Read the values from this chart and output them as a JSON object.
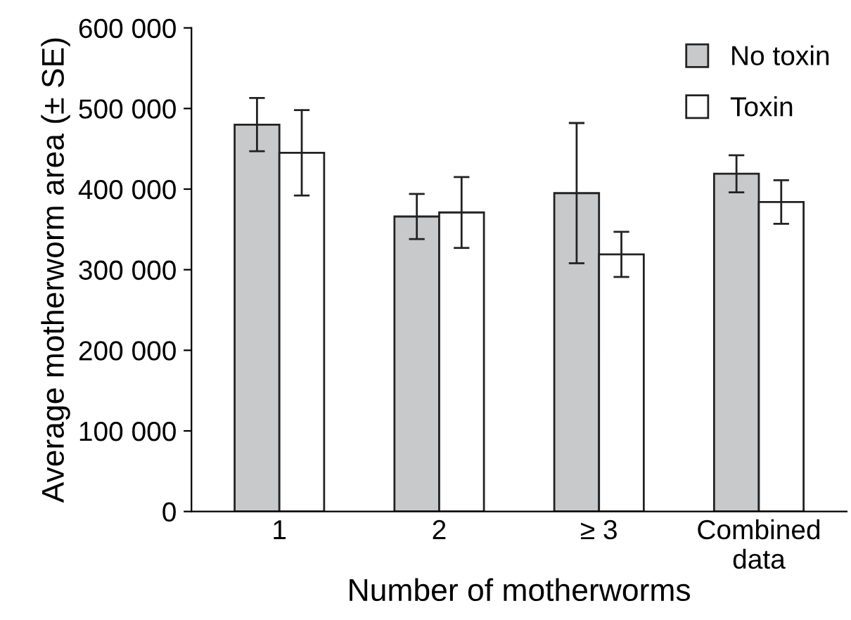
{
  "chart_data": {
    "type": "bar",
    "xlabel": "Number of motherworms",
    "ylabel": "Average motherworm area (± SE)",
    "categories": [
      "1",
      "2",
      "≥ 3",
      "Combined\ndata"
    ],
    "series": [
      {
        "name": "No toxin",
        "color": "#c8c9cb",
        "values": [
          480000,
          366000,
          395000,
          419000
        ],
        "errors": [
          33000,
          28000,
          87000,
          23000
        ]
      },
      {
        "name": "Toxin",
        "color": "#ffffff",
        "values": [
          445000,
          371000,
          319000,
          384000
        ],
        "errors": [
          53000,
          44000,
          28000,
          27000
        ]
      }
    ],
    "ylim": [
      0,
      600000
    ],
    "yticks": [
      {
        "value": 0,
        "label": "0"
      },
      {
        "value": 100000,
        "label": "100 000"
      },
      {
        "value": 200000,
        "label": "200 000"
      },
      {
        "value": 300000,
        "label": "300 000"
      },
      {
        "value": 400000,
        "label": "400 000"
      },
      {
        "value": 500000,
        "label": "500 000"
      },
      {
        "value": 600000,
        "label": "600 000"
      }
    ],
    "grid": false,
    "legend": "top right"
  }
}
